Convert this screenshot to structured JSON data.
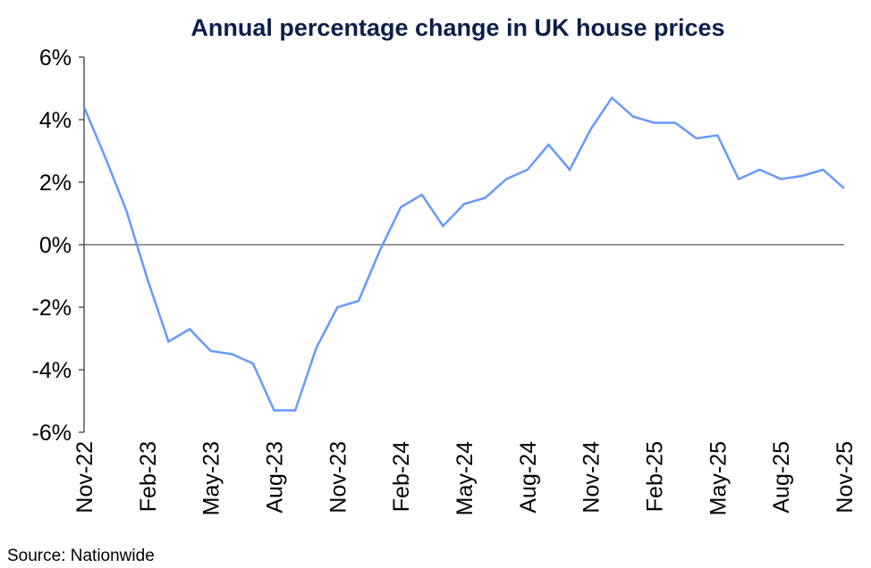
{
  "chart_data": {
    "type": "line",
    "title": "Annual percentage change in UK house prices",
    "source": "Source: Nationwide",
    "ylim": [
      -6,
      6
    ],
    "yticks": [
      -6,
      -4,
      -2,
      0,
      2,
      4,
      6
    ],
    "ytick_labels": [
      "-6%",
      "-4%",
      "-2%",
      "0%",
      "2%",
      "4%",
      "6%"
    ],
    "xtick_labels": [
      "Nov-22",
      "Feb-23",
      "May-23",
      "Aug-23",
      "Nov-23",
      "Feb-24",
      "May-24",
      "Aug-24",
      "Nov-24",
      "Feb-25",
      "May-25",
      "Aug-25",
      "Nov-25"
    ],
    "grid": false,
    "line_color": "#6699ff",
    "x": [
      "Nov-22",
      "Dec-22",
      "Jan-23",
      "Feb-23",
      "Mar-23",
      "Apr-23",
      "May-23",
      "Jun-23",
      "Jul-23",
      "Aug-23",
      "Sep-23",
      "Oct-23",
      "Nov-23",
      "Dec-23",
      "Jan-24",
      "Feb-24",
      "Mar-24",
      "Apr-24",
      "May-24",
      "Jun-24",
      "Jul-24",
      "Aug-24",
      "Sep-24",
      "Oct-24",
      "Nov-24",
      "Dec-24",
      "Jan-25",
      "Feb-25",
      "Mar-25",
      "Apr-25",
      "May-25",
      "Jun-25",
      "Jul-25",
      "Aug-25",
      "Sep-25",
      "Oct-25",
      "Nov-25"
    ],
    "values": [
      4.4,
      2.8,
      1.1,
      -1.1,
      -3.1,
      -2.7,
      -3.4,
      -3.5,
      -3.8,
      -5.3,
      -5.3,
      -3.3,
      -2.0,
      -1.8,
      -0.2,
      1.2,
      1.6,
      0.6,
      1.3,
      1.5,
      2.1,
      2.4,
      3.2,
      2.4,
      3.7,
      4.7,
      4.1,
      3.9,
      3.9,
      3.4,
      3.5,
      2.1,
      2.4,
      2.1,
      2.2,
      2.4,
      1.8
    ]
  }
}
